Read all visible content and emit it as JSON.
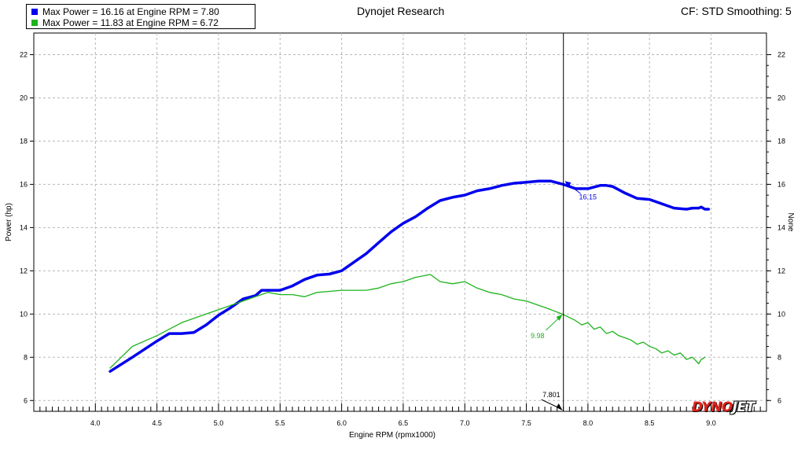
{
  "title": "Dynojet Research",
  "top_right": "CF: STD Smoothing: 5",
  "brand": {
    "part1": "DYNO",
    "part2": "JET"
  },
  "legend": [
    {
      "label": "Max Power = 16.16 at Engine RPM = 7.80",
      "color": "#0000ee"
    },
    {
      "label": "Max Power = 11.83 at Engine RPM = 6.72",
      "color": "#1db31d"
    }
  ],
  "chart_data": {
    "type": "line",
    "xlabel": "Engine RPM (rpmx1000)",
    "ylabel": "Power (hp)",
    "y2label": "None",
    "xlim": [
      3.5,
      9.45
    ],
    "ylim": [
      5.5,
      23.0
    ],
    "x_ticks": [
      "4.0",
      "4.5",
      "5.0",
      "5.5",
      "6.0",
      "6.5",
      "7.0",
      "7.5",
      "8.0",
      "8.5",
      "9.0"
    ],
    "y_ticks": [
      "6",
      "8",
      "10",
      "12",
      "14",
      "16",
      "18",
      "20",
      "22"
    ],
    "grid": true,
    "cursor": {
      "x": 7.801,
      "label": "7.801"
    },
    "annotations": [
      {
        "series": 0,
        "x": 7.8,
        "y": 16.15,
        "label": "16.15"
      },
      {
        "series": 1,
        "x": 7.8,
        "y": 9.98,
        "label": "9.98"
      }
    ],
    "series": [
      {
        "color": "#0000ee",
        "x": [
          4.12,
          4.3,
          4.5,
          4.6,
          4.7,
          4.8,
          4.9,
          5.0,
          5.1,
          5.2,
          5.3,
          5.35,
          5.4,
          5.5,
          5.6,
          5.7,
          5.8,
          5.9,
          6.0,
          6.1,
          6.2,
          6.3,
          6.4,
          6.5,
          6.6,
          6.7,
          6.8,
          6.9,
          7.0,
          7.1,
          7.2,
          7.3,
          7.4,
          7.5,
          7.6,
          7.7,
          7.8,
          7.9,
          8.0,
          8.1,
          8.15,
          8.2,
          8.3,
          8.4,
          8.5,
          8.6,
          8.7,
          8.8,
          8.85,
          8.9,
          8.92,
          8.95,
          8.98
        ],
        "values": [
          7.35,
          8.0,
          8.75,
          9.1,
          9.1,
          9.15,
          9.5,
          9.95,
          10.3,
          10.7,
          10.85,
          11.1,
          11.1,
          11.1,
          11.3,
          11.6,
          11.8,
          11.85,
          12.0,
          12.4,
          12.8,
          13.3,
          13.8,
          14.2,
          14.5,
          14.9,
          15.25,
          15.4,
          15.5,
          15.7,
          15.8,
          15.95,
          16.05,
          16.1,
          16.15,
          16.15,
          16.0,
          15.8,
          15.8,
          15.95,
          15.95,
          15.9,
          15.6,
          15.35,
          15.3,
          15.1,
          14.9,
          14.85,
          14.9,
          14.9,
          14.95,
          14.85,
          14.85
        ]
      },
      {
        "color": "#1db31d",
        "x": [
          4.12,
          4.3,
          4.5,
          4.6,
          4.7,
          4.8,
          4.9,
          5.0,
          5.1,
          5.2,
          5.3,
          5.4,
          5.5,
          5.6,
          5.7,
          5.8,
          5.9,
          6.0,
          6.1,
          6.2,
          6.3,
          6.4,
          6.5,
          6.6,
          6.72,
          6.8,
          6.9,
          7.0,
          7.1,
          7.2,
          7.3,
          7.4,
          7.5,
          7.6,
          7.7,
          7.8,
          7.9,
          7.95,
          8.0,
          8.05,
          8.1,
          8.15,
          8.2,
          8.25,
          8.3,
          8.35,
          8.4,
          8.45,
          8.5,
          8.55,
          8.6,
          8.65,
          8.7,
          8.75,
          8.8,
          8.85,
          8.9,
          8.92,
          8.95
        ],
        "values": [
          7.5,
          8.5,
          9.0,
          9.3,
          9.6,
          9.8,
          10.0,
          10.2,
          10.4,
          10.6,
          10.8,
          11.0,
          10.9,
          10.9,
          10.8,
          11.0,
          11.05,
          11.1,
          11.1,
          11.1,
          11.2,
          11.4,
          11.5,
          11.7,
          11.83,
          11.5,
          11.4,
          11.5,
          11.2,
          11.0,
          10.9,
          10.7,
          10.6,
          10.4,
          10.2,
          9.98,
          9.7,
          9.5,
          9.6,
          9.3,
          9.4,
          9.1,
          9.2,
          9.0,
          8.9,
          8.8,
          8.6,
          8.7,
          8.5,
          8.4,
          8.2,
          8.3,
          8.1,
          8.2,
          7.9,
          8.0,
          7.7,
          7.9,
          8.0
        ]
      }
    ]
  }
}
